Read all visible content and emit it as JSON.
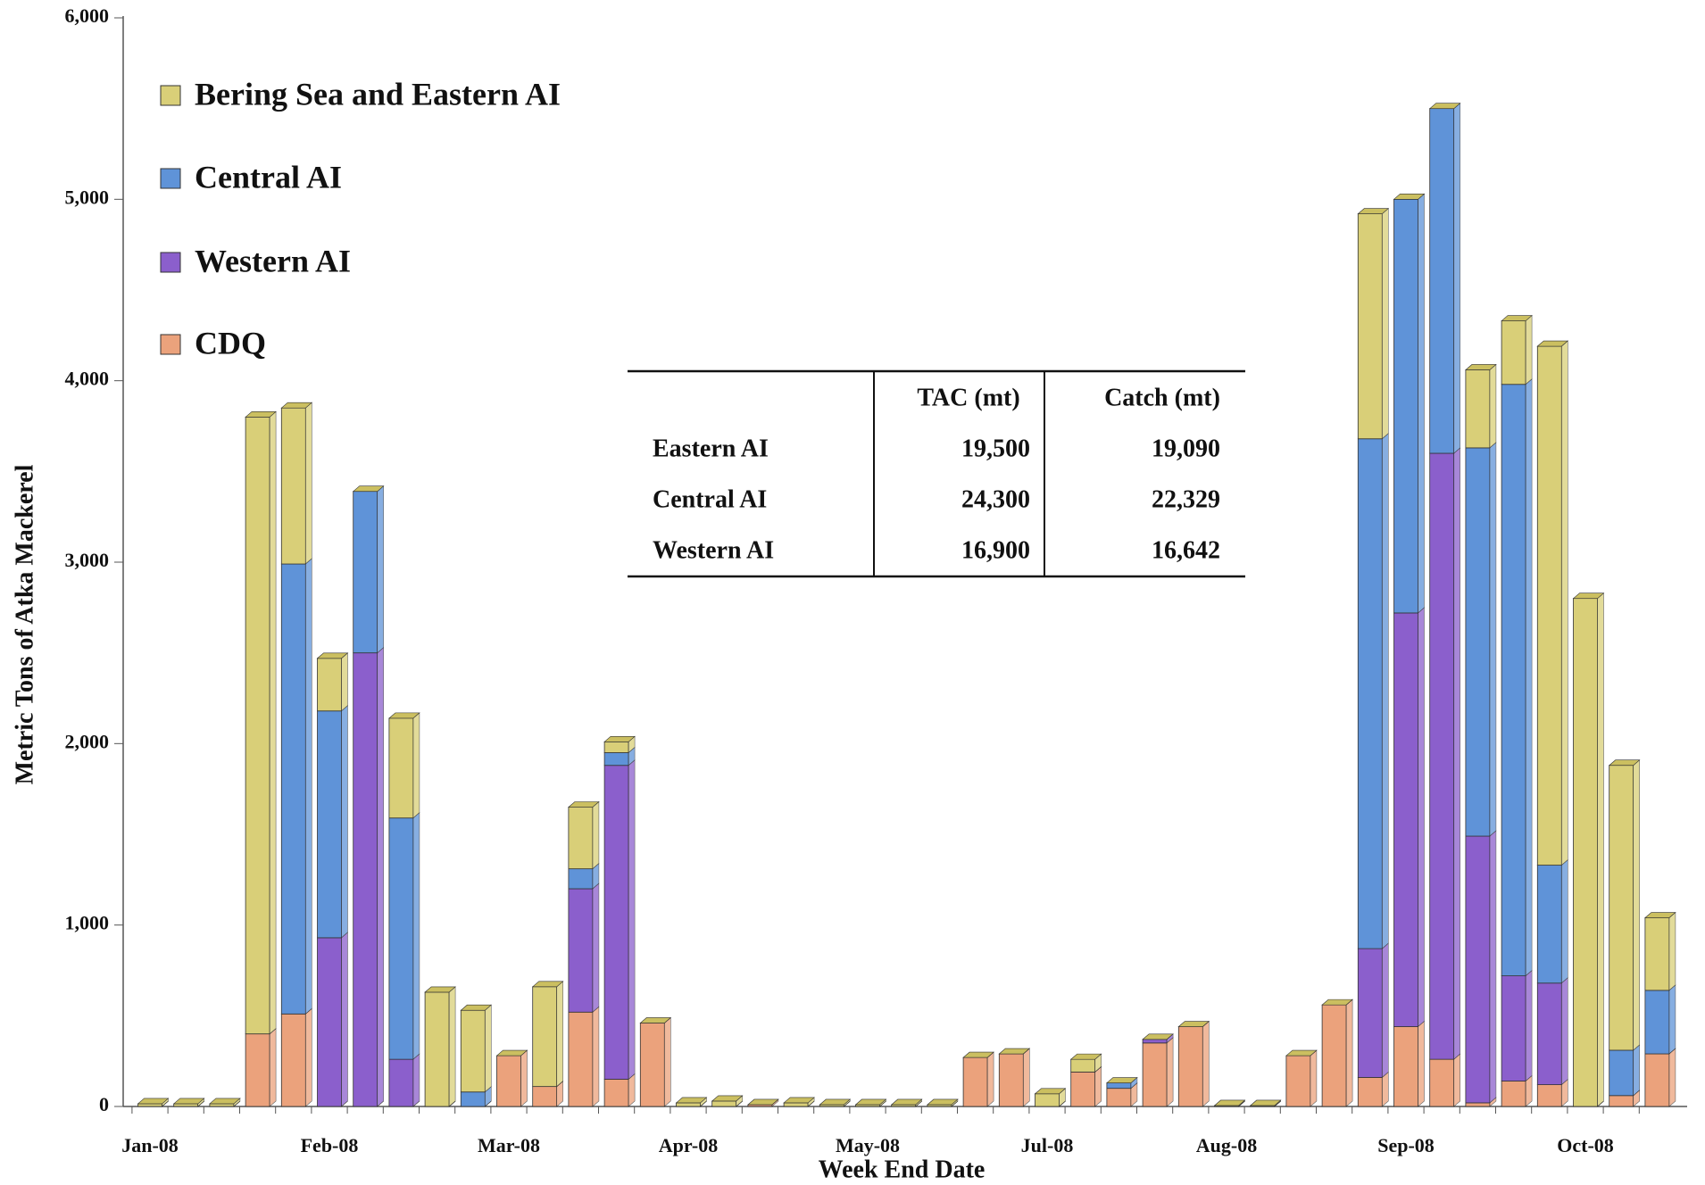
{
  "chart_data": {
    "type": "stacked_bar",
    "x_label": "Week End Date",
    "y_label": "Metric Tons of Atka Mackerel",
    "categories": [
      "Jan-08",
      null,
      null,
      null,
      null,
      "Feb-08",
      null,
      null,
      null,
      null,
      "Mar-08",
      null,
      null,
      null,
      null,
      "Apr-08",
      null,
      null,
      null,
      null,
      "May-08",
      null,
      null,
      null,
      null,
      "Jul-08",
      null,
      null,
      null,
      null,
      "Aug-08",
      null,
      null,
      null,
      null,
      "Sep-08",
      null,
      null,
      null,
      null,
      "Oct-08",
      null,
      null
    ],
    "ylim": [
      0,
      6000
    ],
    "yticks": [
      0,
      {
        "value": 1000,
        "label": "1,000"
      },
      {
        "value": 2000,
        "label": "2,000"
      },
      {
        "value": 3000,
        "label": "3,000"
      },
      {
        "value": 4000,
        "label": "4,000"
      },
      {
        "value": 5000,
        "label": "5,000"
      },
      {
        "value": 6000,
        "label": "6,000"
      }
    ],
    "legend": "top-left",
    "series": [
      {
        "name": "Bering Sea and Eastern AI",
        "color": "#d9cf78",
        "values": [
          15,
          15,
          15,
          3400,
          860,
          290,
          0,
          550,
          630,
          450,
          0,
          550,
          340,
          60,
          0,
          20,
          30,
          0,
          20,
          10,
          10,
          10,
          10,
          0,
          0,
          70,
          70,
          0,
          0,
          0,
          5,
          5,
          0,
          0,
          1240,
          0,
          0,
          430,
          350,
          2860,
          2800,
          1570,
          400
        ]
      },
      {
        "name": "Central AI",
        "color": "#5f93d8",
        "values": [
          0,
          0,
          0,
          0,
          2480,
          1250,
          890,
          1330,
          0,
          80,
          0,
          0,
          110,
          70,
          0,
          0,
          0,
          0,
          0,
          0,
          0,
          0,
          0,
          0,
          0,
          0,
          0,
          30,
          0,
          0,
          0,
          0,
          0,
          0,
          2810,
          2280,
          1900,
          2140,
          3260,
          650,
          0,
          250,
          350
        ]
      },
      {
        "name": "Western AI",
        "color": "#8b5fcc",
        "values": [
          0,
          0,
          0,
          0,
          0,
          930,
          2500,
          260,
          0,
          0,
          0,
          0,
          680,
          1730,
          0,
          0,
          0,
          0,
          0,
          0,
          0,
          0,
          0,
          0,
          0,
          0,
          0,
          0,
          20,
          0,
          0,
          0,
          0,
          0,
          710,
          2280,
          3340,
          1470,
          580,
          560,
          0,
          0,
          0
        ]
      },
      {
        "name": "CDQ",
        "color": "#eba27c",
        "values": [
          0,
          0,
          0,
          400,
          510,
          0,
          0,
          0,
          0,
          0,
          280,
          110,
          520,
          150,
          460,
          0,
          0,
          10,
          0,
          0,
          0,
          0,
          0,
          270,
          290,
          0,
          190,
          100,
          350,
          440,
          0,
          0,
          280,
          560,
          160,
          440,
          260,
          20,
          140,
          120,
          0,
          60,
          290
        ]
      }
    ],
    "table": {
      "header": [
        "TAC (mt)",
        "Catch (mt)"
      ],
      "rows": [
        [
          "Eastern AI",
          "19,500",
          "19,090"
        ],
        [
          "Central AI",
          "24,300",
          "22,329"
        ],
        [
          "Western AI",
          "16,900",
          "16,642"
        ]
      ]
    }
  }
}
